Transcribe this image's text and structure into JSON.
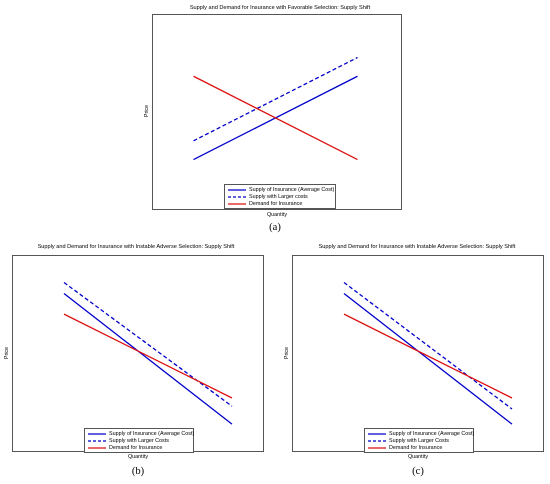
{
  "chart_data": [
    {
      "type": "line",
      "title": "Supply and Demand for Insurance with Favorable Selection: Supply Shift",
      "xlabel": "Quantity",
      "ylabel": "Price",
      "grid": false,
      "legend_position": "bottom-center",
      "sublabel": "(a)",
      "series": [
        {
          "name": "Supply of Insurance (Average Cost)",
          "color": "#0000cc",
          "style": "solid",
          "x": [
            1,
            9
          ],
          "y": [
            1,
            9
          ]
        },
        {
          "name": "Supply with Larger costs",
          "color": "#0000cc",
          "style": "dashed",
          "x": [
            1,
            9
          ],
          "y": [
            2.8,
            10.8
          ]
        },
        {
          "name": "Demand for Insurance",
          "color": "#dd1111",
          "style": "solid",
          "x": [
            1,
            9
          ],
          "y": [
            9,
            1
          ]
        }
      ]
    },
    {
      "type": "line",
      "title": "Supply and Demand for Insurance with Instable Adverse Selection: Supply Shift",
      "xlabel": "Quantity",
      "ylabel": "Price",
      "grid": false,
      "legend_position": "bottom-center",
      "sublabel": "(b)",
      "series": [
        {
          "name": "Supply of Insurance (Average Cost)",
          "color": "#0000cc",
          "style": "solid",
          "x": [
            1,
            9
          ],
          "y": [
            10,
            0.5
          ]
        },
        {
          "name": "Supply with Larger Costs",
          "color": "#0000cc",
          "style": "dashed",
          "x": [
            1,
            9
          ],
          "y": [
            10.8,
            1.8
          ]
        },
        {
          "name": "Demand for Insurance",
          "color": "#dd1111",
          "style": "solid",
          "x": [
            1,
            9
          ],
          "y": [
            8.5,
            2.4
          ]
        }
      ]
    },
    {
      "type": "line",
      "title": "Supply and Demand for Insurance with Instable Adverse Selection: Supply Shift",
      "xlabel": "Quantity",
      "ylabel": "Price",
      "grid": false,
      "legend_position": "bottom-center",
      "sublabel": "(c)",
      "series": [
        {
          "name": "Supply of Insurance (Average Cost)",
          "color": "#0000cc",
          "style": "solid",
          "x": [
            1,
            9
          ],
          "y": [
            10,
            0.5
          ]
        },
        {
          "name": "Supply with Larger Costs",
          "color": "#0000cc",
          "style": "dashed",
          "x": [
            1,
            9
          ],
          "y": [
            10.8,
            1.6
          ]
        },
        {
          "name": "Demand for Insurance",
          "color": "#dd1111",
          "style": "solid",
          "x": [
            1,
            9
          ],
          "y": [
            8.5,
            2.4
          ]
        }
      ]
    }
  ]
}
